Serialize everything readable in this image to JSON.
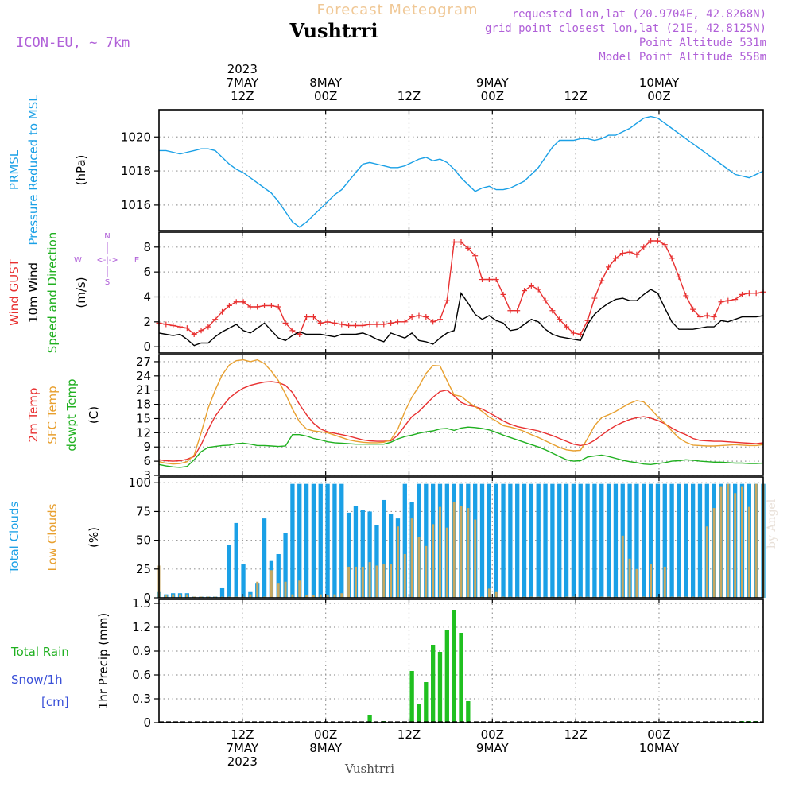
{
  "header": {
    "title": "Forecast Meteogram",
    "location": "Vushtrri",
    "model": "ICON-EU, ~ 7km",
    "requested": "requested lon,lat (20.9704E, 42.8268N)",
    "gridpoint": "grid point closest lon,lat (21E, 42.8125N)",
    "point_altitude": "Point Altitude 531m",
    "model_altitude": "Model Point Altitude 558m",
    "watermark": "by Angel",
    "footer_location": "Vushtrri"
  },
  "time_axis": {
    "start_hour": 0,
    "end_hour": 87,
    "top_labels": [
      {
        "hour": 12,
        "lines": [
          "2023",
          "7MAY",
          "12Z"
        ]
      },
      {
        "hour": 24,
        "lines": [
          "8MAY",
          "00Z"
        ]
      },
      {
        "hour": 36,
        "lines": [
          "12Z"
        ]
      },
      {
        "hour": 48,
        "lines": [
          "9MAY",
          "00Z"
        ]
      },
      {
        "hour": 60,
        "lines": [
          "12Z"
        ]
      },
      {
        "hour": 72,
        "lines": [
          "10MAY",
          "00Z"
        ]
      }
    ],
    "bottom_labels": [
      {
        "hour": 12,
        "lines": [
          "12Z",
          "7MAY",
          "2023"
        ]
      },
      {
        "hour": 24,
        "lines": [
          "00Z",
          "8MAY"
        ]
      },
      {
        "hour": 36,
        "lines": [
          "12Z"
        ]
      },
      {
        "hour": 48,
        "lines": [
          "00Z",
          "9MAY"
        ]
      },
      {
        "hour": 60,
        "lines": [
          "12Z"
        ]
      },
      {
        "hour": 72,
        "lines": [
          "00Z",
          "10MAY"
        ]
      }
    ]
  },
  "chart_data": [
    {
      "type": "line",
      "id": "pressure",
      "ylabel_lines": [
        {
          "text": "PRMSL",
          "color": "#1aa0e6"
        },
        {
          "text": "Pressure Reduced to MSL",
          "color": "#1aa0e6"
        },
        {
          "text": "(hPa)",
          "color": "#000000"
        }
      ],
      "ylim": [
        1014.5,
        1021.6
      ],
      "yticks": [
        1016,
        1018,
        1020
      ],
      "series": [
        {
          "color": "#1aa0e6",
          "values": [
            1019.2,
            1019.2,
            1019.1,
            1019.0,
            1019.1,
            1019.2,
            1019.3,
            1019.3,
            1019.2,
            1018.8,
            1018.4,
            1018.1,
            1017.9,
            1017.6,
            1017.3,
            1017.0,
            1016.7,
            1016.2,
            1015.6,
            1015.0,
            1014.7,
            1015.0,
            1015.4,
            1015.8,
            1016.2,
            1016.6,
            1016.9,
            1017.4,
            1017.9,
            1018.4,
            1018.5,
            1018.4,
            1018.3,
            1018.2,
            1018.2,
            1018.3,
            1018.5,
            1018.7,
            1018.8,
            1018.6,
            1018.7,
            1018.5,
            1018.1,
            1017.6,
            1017.2,
            1016.8,
            1017.0,
            1017.1,
            1016.9,
            1016.9,
            1017.0,
            1017.2,
            1017.4,
            1017.8,
            1018.2,
            1018.8,
            1019.4,
            1019.8,
            1019.8,
            1019.8,
            1019.9,
            1019.9,
            1019.8,
            1019.9,
            1020.1,
            1020.1,
            1020.3,
            1020.5,
            1020.8,
            1021.1,
            1021.2,
            1021.1,
            1020.8,
            1020.5,
            1020.2,
            1019.9,
            1019.6,
            1019.3,
            1019.0,
            1018.7,
            1018.4,
            1018.1,
            1017.8,
            1017.7,
            1017.6,
            1017.8,
            1018.0
          ]
        }
      ]
    },
    {
      "type": "line",
      "id": "wind",
      "ylabel_lines": [
        {
          "text": "Wind GUST",
          "color": "#e83030"
        },
        {
          "text": "10m Wind",
          "color": "#000000"
        },
        {
          "text": "Speed and Direction",
          "color": "#20b020"
        },
        {
          "text": "(m/s)",
          "color": "#000000"
        }
      ],
      "compass": {
        "n": "N",
        "s": "S",
        "w": "W",
        "e": "E",
        "arrows": "<-|->"
      },
      "ylim": [
        -0.5,
        9.2
      ],
      "yticks": [
        0,
        2,
        4,
        6,
        8
      ],
      "series": [
        {
          "color": "#e83030",
          "marker": "plus",
          "values": [
            1.9,
            1.8,
            1.7,
            1.6,
            1.5,
            1.0,
            1.3,
            1.6,
            2.2,
            2.8,
            3.3,
            3.6,
            3.6,
            3.2,
            3.2,
            3.3,
            3.3,
            3.2,
            1.9,
            1.3,
            1.0,
            2.4,
            2.4,
            1.9,
            2.0,
            1.9,
            1.8,
            1.7,
            1.7,
            1.7,
            1.8,
            1.8,
            1.8,
            1.9,
            2.0,
            2.0,
            2.4,
            2.5,
            2.4,
            2.0,
            2.2,
            3.7,
            8.4,
            8.4,
            7.9,
            7.3,
            5.4,
            5.4,
            5.4,
            4.2,
            2.9,
            2.9,
            4.5,
            4.9,
            4.6,
            3.7,
            2.9,
            2.2,
            1.6,
            1.1,
            1.0,
            2.1,
            3.9,
            5.3,
            6.4,
            7.1,
            7.5,
            7.6,
            7.4,
            8.0,
            8.5,
            8.5,
            8.2,
            7.1,
            5.6,
            4.1,
            3.0,
            2.4,
            2.5,
            2.4,
            3.6,
            3.7,
            3.8,
            4.2,
            4.3,
            4.3,
            4.4
          ]
        },
        {
          "color": "#000000",
          "values": [
            1.1,
            1.0,
            0.9,
            1.0,
            0.6,
            0.1,
            0.3,
            0.3,
            0.8,
            1.2,
            1.5,
            1.8,
            1.3,
            1.1,
            1.5,
            1.9,
            1.3,
            0.7,
            0.5,
            0.9,
            1.2,
            1.0,
            1.0,
            1.0,
            0.9,
            0.8,
            1.0,
            1.0,
            1.0,
            1.1,
            0.9,
            0.6,
            0.4,
            1.1,
            0.9,
            0.7,
            1.1,
            0.5,
            0.4,
            0.2,
            0.7,
            1.1,
            1.3,
            4.3,
            3.5,
            2.6,
            2.2,
            2.5,
            2.1,
            1.9,
            1.3,
            1.4,
            1.8,
            2.2,
            2.0,
            1.4,
            1.0,
            0.8,
            0.7,
            0.6,
            0.5,
            1.8,
            2.6,
            3.1,
            3.5,
            3.8,
            3.9,
            3.7,
            3.7,
            4.2,
            4.6,
            4.3,
            3.1,
            2.0,
            1.4,
            1.4,
            1.4,
            1.5,
            1.6,
            1.6,
            2.1,
            2.0,
            2.2,
            2.4,
            2.4,
            2.4,
            2.5
          ]
        }
      ]
    },
    {
      "type": "line",
      "id": "temperature",
      "ylabel_lines": [
        {
          "text": "2m Temp",
          "color": "#e83030"
        },
        {
          "text": "SFC Temp",
          "color": "#e8a030"
        },
        {
          "text": "dewpt Temp",
          "color": "#20b020"
        },
        {
          "text": "(C)",
          "color": "#000000"
        }
      ],
      "ylim": [
        3,
        28.5
      ],
      "yticks": [
        3,
        6,
        9,
        12,
        15,
        18,
        21,
        24,
        27
      ],
      "series": [
        {
          "color": "#e83030",
          "values": [
            6.3,
            6.1,
            6.0,
            6.1,
            6.4,
            7.0,
            9.5,
            12.7,
            15.5,
            17.5,
            19.3,
            20.5,
            21.4,
            22.0,
            22.4,
            22.7,
            22.8,
            22.6,
            22.0,
            20.5,
            18.0,
            15.8,
            14.0,
            12.8,
            12.2,
            11.9,
            11.6,
            11.3,
            10.9,
            10.5,
            10.3,
            10.2,
            10.2,
            10.3,
            11.5,
            13.5,
            15.4,
            16.5,
            18.0,
            19.5,
            20.7,
            21.0,
            19.8,
            18.4,
            17.8,
            17.5,
            17.0,
            16.2,
            15.4,
            14.5,
            13.8,
            13.3,
            13.0,
            12.7,
            12.4,
            11.9,
            11.4,
            10.8,
            10.2,
            9.6,
            9.3,
            9.6,
            10.4,
            11.5,
            12.6,
            13.5,
            14.2,
            14.8,
            15.2,
            15.4,
            15.1,
            14.6,
            13.9,
            13.0,
            12.2,
            11.6,
            10.8,
            10.4,
            10.3,
            10.2,
            10.2,
            10.1,
            10.0,
            9.9,
            9.8,
            9.7,
            9.9
          ]
        },
        {
          "color": "#e8a030",
          "values": [
            5.9,
            5.6,
            5.4,
            5.5,
            5.9,
            7.3,
            12.0,
            17.2,
            21.0,
            24.2,
            26.3,
            27.2,
            27.4,
            27.0,
            27.4,
            26.6,
            25.0,
            23.0,
            20.2,
            17.0,
            14.3,
            12.8,
            12.4,
            12.2,
            12.0,
            11.5,
            11.0,
            10.5,
            10.2,
            10.0,
            9.9,
            9.9,
            10.0,
            10.5,
            12.8,
            16.5,
            19.5,
            21.8,
            24.5,
            26.2,
            26.1,
            23.0,
            20.0,
            19.7,
            18.5,
            17.5,
            16.5,
            15.3,
            14.5,
            13.5,
            13.2,
            12.8,
            12.3,
            11.6,
            11.0,
            10.3,
            9.6,
            8.9,
            8.4,
            8.2,
            8.3,
            10.8,
            13.5,
            15.2,
            15.8,
            16.5,
            17.4,
            18.2,
            18.8,
            18.5,
            17.0,
            15.4,
            14.0,
            12.4,
            10.9,
            10.0,
            9.4,
            9.3,
            9.2,
            9.2,
            9.3,
            9.4,
            9.5,
            9.4,
            9.3,
            9.3,
            9.5
          ]
        },
        {
          "color": "#20b020",
          "values": [
            5.3,
            5.0,
            4.8,
            4.7,
            4.9,
            6.3,
            8.0,
            8.9,
            9.1,
            9.3,
            9.4,
            9.7,
            9.8,
            9.6,
            9.3,
            9.3,
            9.2,
            9.1,
            9.2,
            11.6,
            11.6,
            11.3,
            10.8,
            10.5,
            10.1,
            9.9,
            9.8,
            9.7,
            9.6,
            9.6,
            9.6,
            9.6,
            9.6,
            10.0,
            10.7,
            11.2,
            11.5,
            11.9,
            12.2,
            12.4,
            12.8,
            12.9,
            12.5,
            13.0,
            13.2,
            13.1,
            12.9,
            12.6,
            12.1,
            11.5,
            11.0,
            10.5,
            10.0,
            9.5,
            9.0,
            8.4,
            7.7,
            7.0,
            6.3,
            6.0,
            6.1,
            6.9,
            7.1,
            7.3,
            7.0,
            6.6,
            6.2,
            5.9,
            5.7,
            5.4,
            5.3,
            5.5,
            5.7,
            6.0,
            6.1,
            6.3,
            6.2,
            6.0,
            5.9,
            5.8,
            5.8,
            5.7,
            5.6,
            5.6,
            5.5,
            5.5,
            5.6
          ]
        }
      ]
    },
    {
      "type": "bar",
      "id": "clouds",
      "ylabel_lines": [
        {
          "text": "Total Clouds",
          "color": "#1aa0e6"
        },
        {
          "text": "Low Clouds",
          "color": "#e8a030"
        },
        {
          "text": "(%)",
          "color": "#000000"
        }
      ],
      "ylim": [
        0,
        105
      ],
      "yticks": [
        0,
        25,
        50,
        75,
        100
      ],
      "series": [
        {
          "color": "#1aa0e6",
          "values": [
            5,
            3,
            4,
            4,
            4,
            1,
            1,
            1,
            1,
            9,
            46,
            65,
            29,
            5,
            13,
            69,
            32,
            38,
            56,
            99,
            99,
            99,
            99,
            99,
            99,
            99,
            99,
            74,
            80,
            76,
            75,
            63,
            85,
            73,
            69,
            99,
            83,
            99,
            99,
            99,
            99,
            99,
            99,
            99,
            99,
            99,
            99,
            99,
            99,
            99,
            99,
            99,
            99,
            99,
            99,
            99,
            99,
            99,
            99,
            99,
            99,
            99,
            99,
            99,
            99,
            99,
            99,
            99,
            99,
            99,
            99,
            99,
            99,
            99,
            99,
            99,
            99,
            99,
            99,
            99,
            99,
            99,
            99,
            99,
            99,
            99,
            99
          ]
        },
        {
          "color": "#c8a860",
          "values": [
            28,
            2,
            3,
            3,
            3,
            1,
            1,
            1,
            1,
            1,
            1,
            1,
            1,
            3,
            14,
            1,
            24,
            13,
            14,
            3,
            15,
            2,
            2,
            3,
            2,
            3,
            4,
            27,
            27,
            27,
            31,
            28,
            29,
            29,
            62,
            38,
            69,
            53,
            45,
            64,
            79,
            61,
            83,
            80,
            78,
            68,
            1,
            8,
            5,
            1,
            1,
            1,
            1,
            1,
            1,
            1,
            1,
            1,
            1,
            1,
            1,
            1,
            1,
            1,
            1,
            1,
            54,
            34,
            25,
            1,
            29,
            1,
            27,
            1,
            1,
            1,
            1,
            1,
            62,
            78,
            97,
            99,
            91,
            97,
            79,
            99,
            99
          ]
        }
      ]
    },
    {
      "type": "bar",
      "id": "precip",
      "ylabel_lines": [
        {
          "text": "1hr Precip (mm)",
          "color": "#000000"
        }
      ],
      "legend_lines": [
        {
          "text": "Total  Rain",
          "color": "#20b020"
        },
        {
          "text": "Snow/1h",
          "color": "#3a50d8"
        },
        {
          "text": "[cm]",
          "color": "#3a50d8"
        }
      ],
      "ylim": [
        0,
        1.55
      ],
      "yticks": [
        0,
        0.3,
        0.6,
        0.9,
        1.2,
        1.5
      ],
      "ytick_labels": [
        "0",
        "0.3",
        "0.6",
        "0.9",
        "1.2",
        "1.5"
      ],
      "series": [
        {
          "color": "#20c020",
          "values": [
            0,
            0,
            0,
            0,
            0,
            0,
            0,
            0,
            0,
            0,
            0,
            0,
            0,
            0,
            0,
            0,
            0,
            0,
            0,
            0,
            0,
            0,
            0,
            0,
            0,
            0,
            0,
            0,
            0,
            0,
            0.09,
            0,
            0.02,
            0,
            0.01,
            0,
            0.65,
            0.24,
            0.51,
            0.98,
            0.89,
            1.17,
            1.42,
            1.13,
            0.27,
            0,
            0,
            0,
            0,
            0,
            0,
            0,
            0,
            0,
            0,
            0,
            0,
            0,
            0,
            0,
            0,
            0,
            0,
            0,
            0,
            0,
            0,
            0,
            0,
            0,
            0,
            0,
            0,
            0,
            0,
            0,
            0,
            0,
            0,
            0,
            0,
            0,
            0.01,
            0.02,
            0.02,
            0.02,
            0
          ]
        }
      ]
    }
  ]
}
